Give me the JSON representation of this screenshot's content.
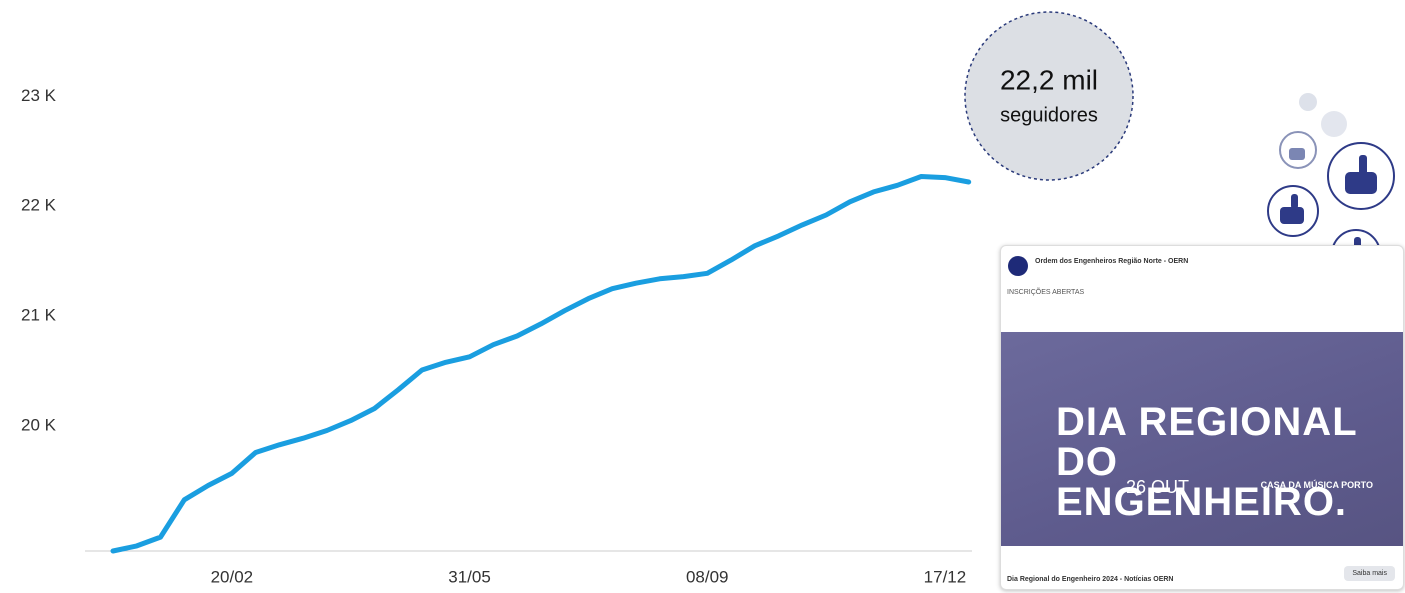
{
  "chart_data": {
    "type": "line",
    "categories": [
      null,
      null,
      null,
      null,
      null,
      "20/02",
      null,
      null,
      null,
      null,
      null,
      null,
      null,
      null,
      null,
      "31/05",
      null,
      null,
      null,
      null,
      null,
      null,
      null,
      null,
      null,
      "08/09",
      null,
      null,
      null,
      null,
      null,
      null,
      null,
      null,
      null,
      "17/12",
      null
    ],
    "values": [
      18864,
      18910,
      18990,
      19330,
      19460,
      19570,
      19760,
      19830,
      19890,
      19960,
      20050,
      20160,
      20330,
      20510,
      20580,
      20630,
      20740,
      20820,
      20930,
      21050,
      21160,
      21250,
      21300,
      21340,
      21360,
      21390,
      21510,
      21640,
      21730,
      21830,
      21920,
      22040,
      22130,
      22190,
      22270,
      22260,
      22220
    ],
    "color": "#1a9ee0",
    "ylim": [
      18864,
      23330
    ],
    "yticks": [
      {
        "value": 20000,
        "label": "20 K"
      },
      {
        "value": 21000,
        "label": "21 K"
      },
      {
        "value": 22000,
        "label": "22 K"
      },
      {
        "value": 23000,
        "label": "23 K"
      }
    ],
    "grid": false
  },
  "badge": {
    "value": "22,2 mil",
    "unit": "seguidores"
  },
  "post": {
    "page": "Ordem dos Engenheiros Região Norte - OERN",
    "text": "INSCRIÇÕES ABERTAS",
    "headline": "DIA REGIONAL DO ENGENHEIRO.",
    "date": "26 OUT",
    "venue": "CASA DA MÚSICA PORTO",
    "link": "Dia Regional do Engenheiro 2024 - Notícias OERN",
    "button": "Saiba mais"
  }
}
